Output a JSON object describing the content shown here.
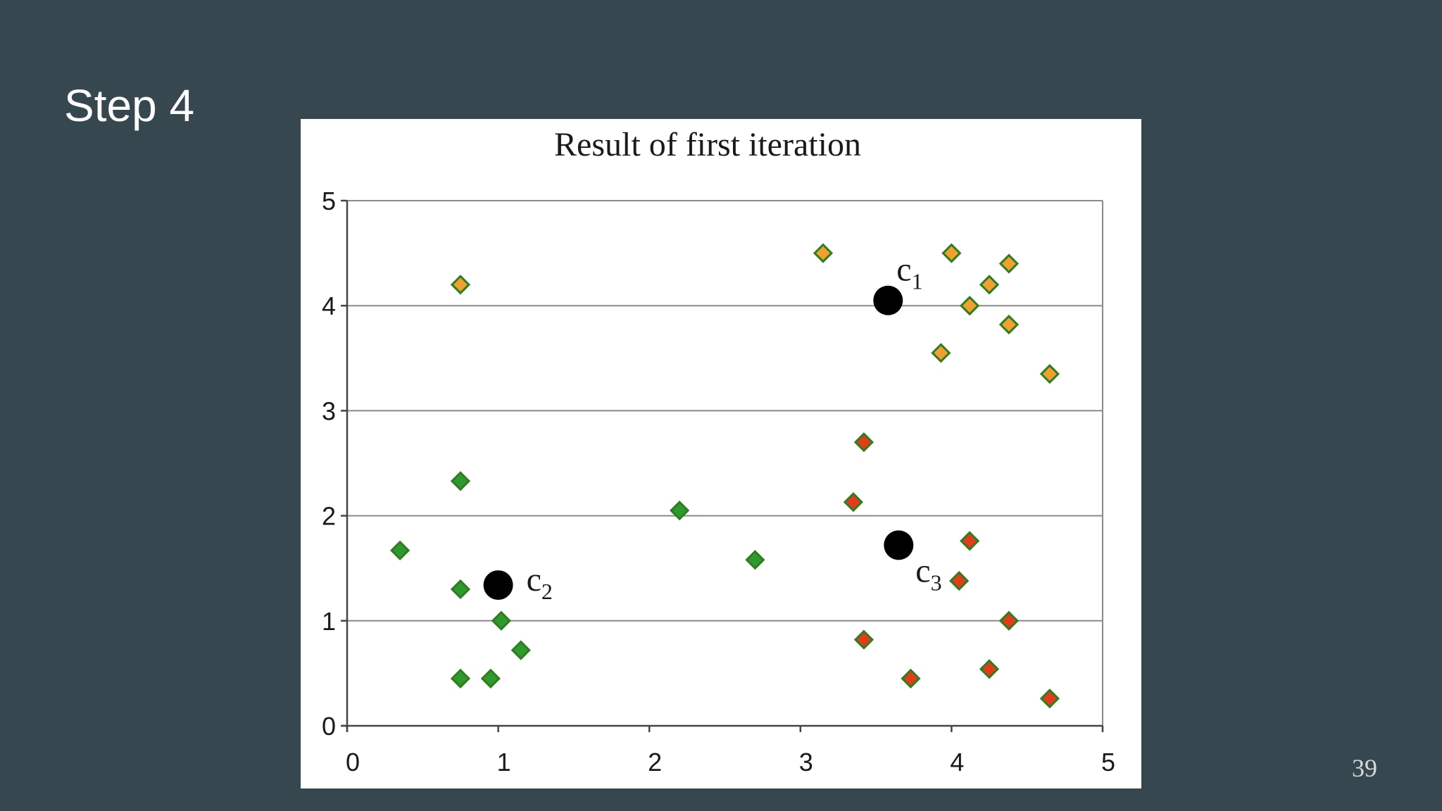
{
  "slide": {
    "title": "Step 4",
    "page_number": "39",
    "background": "#37474f"
  },
  "chart_data": {
    "type": "scatter",
    "title": "Result of first iteration",
    "xlabel": "",
    "ylabel": "",
    "xlim": [
      0,
      5
    ],
    "ylim": [
      0,
      5
    ],
    "x_ticks": [
      "0",
      "1",
      "2",
      "3",
      "4",
      "5"
    ],
    "y_ticks": [
      "0",
      "1",
      "2",
      "3",
      "4",
      "5"
    ],
    "grid": "horizontal",
    "colors": {
      "cluster_1_fill": "#f0a030",
      "cluster_2_fill": "#2e9a2e",
      "cluster_3_fill": "#e23c1c",
      "marker_outline": "#2e7d1e",
      "centroid": "#000000"
    },
    "series": [
      {
        "marker": "diamond",
        "color": "#f0a030",
        "points": [
          {
            "x": 0.75,
            "y": 4.2
          },
          {
            "x": 3.15,
            "y": 4.5
          },
          {
            "x": 4.0,
            "y": 4.5
          },
          {
            "x": 4.38,
            "y": 4.4
          },
          {
            "x": 4.25,
            "y": 4.2
          },
          {
            "x": 4.12,
            "y": 4.0
          },
          {
            "x": 4.38,
            "y": 3.82
          },
          {
            "x": 3.93,
            "y": 3.55
          },
          {
            "x": 4.65,
            "y": 3.35
          }
        ]
      },
      {
        "marker": "diamond",
        "color": "#2e9a2e",
        "points": [
          {
            "x": 0.75,
            "y": 2.33
          },
          {
            "x": 0.35,
            "y": 1.67
          },
          {
            "x": 0.75,
            "y": 1.3
          },
          {
            "x": 1.02,
            "y": 1.0
          },
          {
            "x": 1.15,
            "y": 0.72
          },
          {
            "x": 0.75,
            "y": 0.45
          },
          {
            "x": 0.95,
            "y": 0.45
          },
          {
            "x": 2.2,
            "y": 2.05
          },
          {
            "x": 2.7,
            "y": 1.58
          }
        ]
      },
      {
        "marker": "diamond",
        "color": "#e23c1c",
        "points": [
          {
            "x": 3.42,
            "y": 2.7
          },
          {
            "x": 3.35,
            "y": 2.13
          },
          {
            "x": 4.12,
            "y": 1.76
          },
          {
            "x": 4.05,
            "y": 1.38
          },
          {
            "x": 4.38,
            "y": 1.0
          },
          {
            "x": 3.42,
            "y": 0.82
          },
          {
            "x": 3.73,
            "y": 0.45
          },
          {
            "x": 4.25,
            "y": 0.54
          },
          {
            "x": 4.65,
            "y": 0.26
          }
        ]
      }
    ],
    "centroids": [
      {
        "label": "c",
        "subscript": "1",
        "x": 3.58,
        "y": 4.05,
        "label_side": "upper-right"
      },
      {
        "label": "c",
        "subscript": "2",
        "x": 1.0,
        "y": 1.34,
        "label_side": "right"
      },
      {
        "label": "c",
        "subscript": "3",
        "x": 3.65,
        "y": 1.72,
        "label_side": "lower-right"
      }
    ]
  }
}
